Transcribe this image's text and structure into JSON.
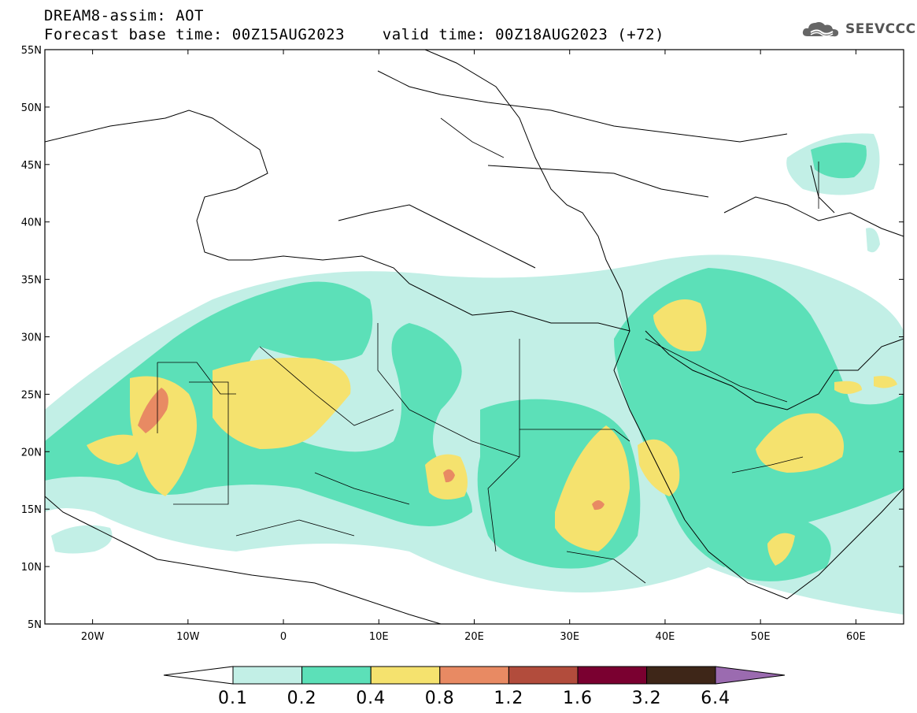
{
  "header": {
    "title_line1": "DREAM8-assim: AOT",
    "title_line2": "Forecast base time: 00Z15AUG2023    valid time: 00Z18AUG2023 (+72)",
    "logo_text": "SEEVCCC"
  },
  "map": {
    "lon_range": [
      -25,
      65
    ],
    "lat_range": [
      5,
      55
    ],
    "lat_ticks": [
      "55N",
      "50N",
      "45N",
      "40N",
      "35N",
      "30N",
      "25N",
      "20N",
      "15N",
      "10N",
      "5N"
    ],
    "lon_ticks": [
      "20W",
      "10W",
      "0",
      "10E",
      "20E",
      "30E",
      "40E",
      "50E",
      "60E"
    ],
    "levels": [
      {
        "min": 0.1,
        "max": 0.2,
        "color": "#c2efe6"
      },
      {
        "min": 0.2,
        "max": 0.4,
        "color": "#5ce0b8"
      },
      {
        "min": 0.4,
        "max": 0.8,
        "color": "#f5e26e"
      },
      {
        "min": 0.8,
        "max": 1.2,
        "color": "#e88a63"
      },
      {
        "min": 1.2,
        "max": 1.6,
        "color": "#b24c3c"
      },
      {
        "min": 1.6,
        "max": 3.2,
        "color": "#7a0030"
      },
      {
        "min": 3.2,
        "max": 6.4,
        "color": "#3e2618"
      }
    ]
  },
  "colorbar": {
    "labels": [
      "0.1",
      "0.2",
      "0.4",
      "0.8",
      "1.2",
      "1.6",
      "3.2",
      "6.4"
    ],
    "under_color": "#ffffff",
    "over_color": "#9b6bb0",
    "colors": [
      "#c2efe6",
      "#5ce0b8",
      "#f5e26e",
      "#e88a63",
      "#b24c3c",
      "#7a0030",
      "#3e2618"
    ]
  }
}
